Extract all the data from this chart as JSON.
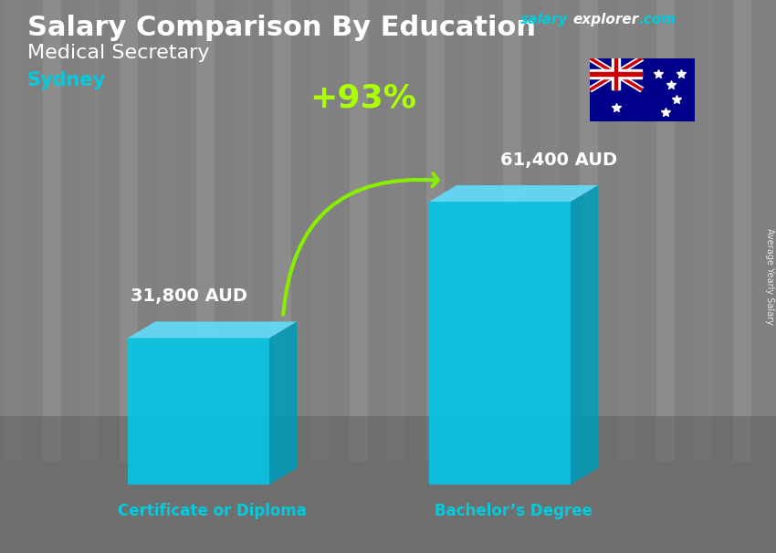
{
  "title_main": "Salary Comparison By Education",
  "subtitle1": "Medical Secretary",
  "subtitle2": "Sydney",
  "categories": [
    "Certificate or Diploma",
    "Bachelor’s Degree"
  ],
  "values": [
    31800,
    61400
  ],
  "value_labels": [
    "31,800 AUD",
    "61,400 AUD"
  ],
  "pct_change": "+93%",
  "bar_color_face": "#00C8E8",
  "bar_color_side": "#009AB8",
  "bar_color_top": "#60DFFF",
  "ylabel_rotated": "Average Yearly Salary",
  "bg_color": "#808080",
  "title_color": "#FFFFFF",
  "subtitle1_color": "#FFFFFF",
  "subtitle2_color": "#00CCDD",
  "label_color": "#FFFFFF",
  "cat_label_color": "#00CCDD",
  "pct_color": "#AAFF00",
  "arrow_color": "#88EE00",
  "salary_color": "#00CCDD",
  "explorer_color": "#FFFFFF",
  "com_color": "#00CCDD"
}
